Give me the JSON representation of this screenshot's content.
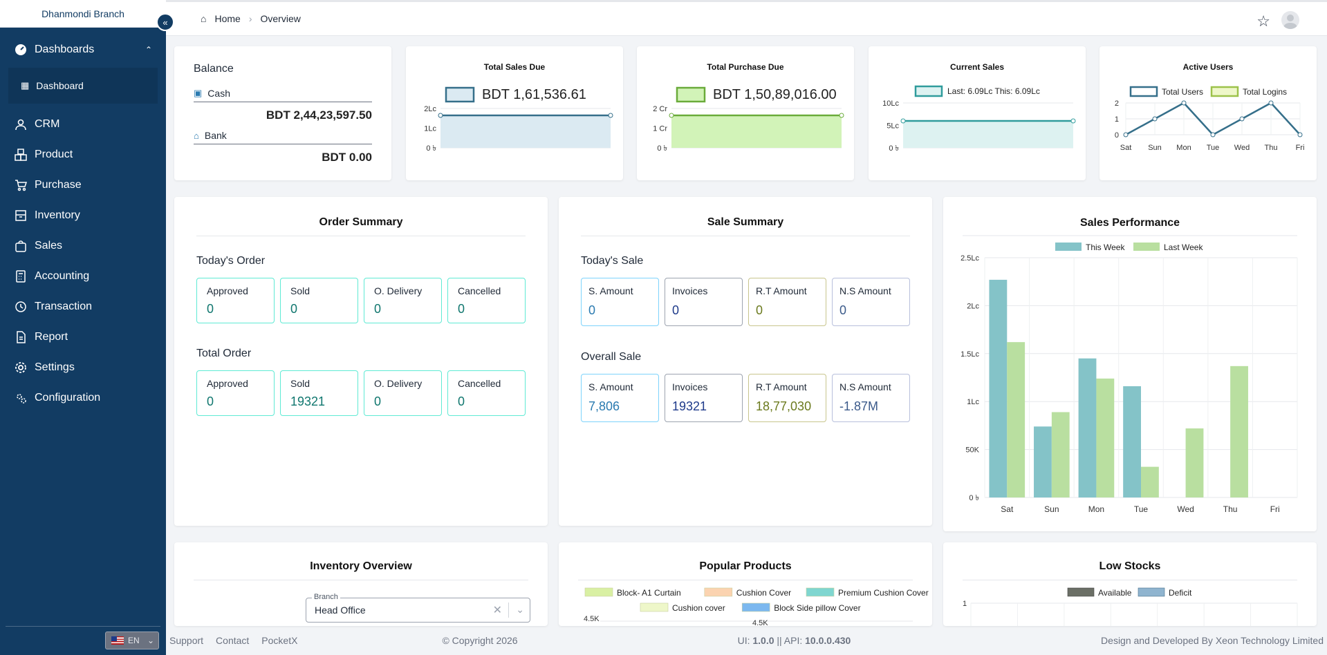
{
  "branch": "Dhanmondi Branch",
  "breadcrumb": {
    "home": "Home",
    "current": "Overview"
  },
  "nav": {
    "dashboards": "Dashboards",
    "dashboard": "Dashboard",
    "items": [
      "CRM",
      "Product",
      "Purchase",
      "Inventory",
      "Sales",
      "Accounting",
      "Transaction",
      "Report",
      "Settings",
      "Configuration"
    ]
  },
  "lang": "EN",
  "balance": {
    "title": "Balance",
    "cash_label": "Cash",
    "cash_value": "BDT 2,44,23,597.50",
    "bank_label": "Bank",
    "bank_value": "BDT 0.00"
  },
  "sales_due": {
    "title": "Total Sales Due",
    "legend": "BDT 1,61,536.61",
    "ticks": [
      "2Lc",
      "1Lc",
      "0 ৳"
    ],
    "fill": "#dbeaf2",
    "stroke": "#356f8a"
  },
  "purchase_due": {
    "title": "Total Purchase Due",
    "legend": "BDT 1,50,89,016.00",
    "ticks": [
      "2 Cr",
      "1 Cr",
      "0 ৳"
    ],
    "fill": "#d2f3b8",
    "stroke": "#6aab3a"
  },
  "current_sales": {
    "title": "Current Sales",
    "legend": "Last: 6.09Lc This: 6.09Lc",
    "ticks": [
      "10Lc",
      "5Lc",
      "0 ৳"
    ],
    "fill": "#ddf2f1",
    "stroke": "#2f9c9c"
  },
  "active_users": {
    "title": "Active Users",
    "legend1": "Total Users",
    "legend2": "Total Logins",
    "ticks": [
      "2",
      "1",
      "0"
    ],
    "days": [
      "Sat",
      "Sun",
      "Mon",
      "Tue",
      "Wed",
      "Thu",
      "Fri"
    ],
    "users": [
      0,
      1,
      2,
      0,
      1,
      2,
      0
    ]
  },
  "order_summary": {
    "title": "Order Summary",
    "today_label": "Today's Order",
    "today": [
      {
        "label": "Approved",
        "value": "0"
      },
      {
        "label": "Sold",
        "value": "0"
      },
      {
        "label": "O. Delivery",
        "value": "0"
      },
      {
        "label": "Cancelled",
        "value": "0"
      }
    ],
    "total_label": "Total Order",
    "total": [
      {
        "label": "Approved",
        "value": "0"
      },
      {
        "label": "Sold",
        "value": "19321"
      },
      {
        "label": "O. Delivery",
        "value": "0"
      },
      {
        "label": "Cancelled",
        "value": "0"
      }
    ]
  },
  "sale_summary": {
    "title": "Sale Summary",
    "today_label": "Today's Sale",
    "today": [
      {
        "label": "S. Amount",
        "value": "0"
      },
      {
        "label": "Invoices",
        "value": "0"
      },
      {
        "label": "R.T Amount",
        "value": "0"
      },
      {
        "label": "N.S Amount",
        "value": "0"
      }
    ],
    "overall_label": "Overall Sale",
    "overall": [
      {
        "label": "S. Amount",
        "value": "7,806"
      },
      {
        "label": "Invoices",
        "value": "19321"
      },
      {
        "label": "R.T Amount",
        "value": "18,77,030"
      },
      {
        "label": "N.S Amount",
        "value": "-1.87M"
      }
    ]
  },
  "chart_data": {
    "type": "bar",
    "title": "Sales Performance",
    "categories": [
      "Sat",
      "Sun",
      "Mon",
      "Tue",
      "Wed",
      "Thu",
      "Fri"
    ],
    "series": [
      {
        "name": "This Week",
        "values": [
          227000,
          74000,
          145000,
          116000,
          0,
          0,
          0
        ],
        "color": "#84c3c8"
      },
      {
        "name": "Last Week",
        "values": [
          162000,
          89000,
          124000,
          32000,
          72000,
          137000,
          0
        ],
        "color": "#b9dfa0"
      }
    ],
    "yticks": [
      "2.5Lc",
      "2Lc",
      "1.5Lc",
      "1Lc",
      "50K",
      "0 ৳"
    ],
    "ylim": [
      0,
      250000
    ],
    "legend": "top"
  },
  "inventory": {
    "title": "Inventory Overview",
    "branch_label": "Branch",
    "branch_value": "Head Office"
  },
  "popular": {
    "title": "Popular Products",
    "items": [
      {
        "name": "Block- A1 Curtain",
        "color": "#d9f0a3"
      },
      {
        "name": "Cushion Cover",
        "color": "#fbd3b0"
      },
      {
        "name": "Premium Cushion Cover",
        "color": "#7fd6d0"
      },
      {
        "name": "Cushion cover",
        "color": "#eef7c9"
      },
      {
        "name": "Block Side pillow Cover",
        "color": "#7cb8ef"
      }
    ],
    "tick1": "4.5K",
    "tick2": "4.5K"
  },
  "low_stocks": {
    "title": "Low Stocks",
    "available": "Available",
    "deficit": "Deficit",
    "tick": "1"
  },
  "footer": {
    "support": "Support",
    "contact": "Contact",
    "pocketx": "PocketX",
    "copyright": "© Copyright 2026",
    "version_prefix": "UI: ",
    "ui": "1.0.0",
    "sep": " || API: ",
    "api": "10.0.0.430",
    "credit": "Design and Developed By Xeon Technology Limited"
  }
}
